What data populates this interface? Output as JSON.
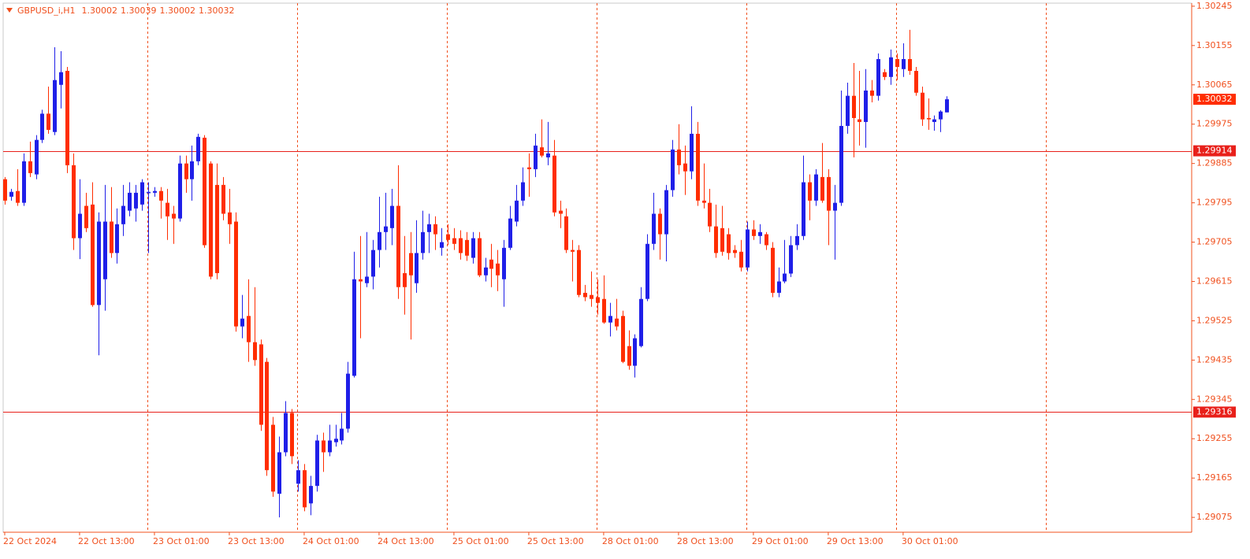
{
  "chart_data": {
    "type": "candlestick",
    "symbol": "GBPUSD_i,H1",
    "up_color": "#1f1fe8",
    "down_color": "#ff2d00",
    "axis_color": "#f0501e",
    "hline_color": "#e8201a",
    "categories": [
      "22 Oct 2024",
      null,
      null,
      null,
      null,
      null,
      null,
      null,
      null,
      null,
      null,
      null,
      "22 Oct 13:00",
      null,
      null,
      null,
      null,
      null,
      null,
      null,
      null,
      null,
      null,
      null,
      "23 Oct 01:00",
      null,
      null,
      null,
      null,
      null,
      null,
      null,
      null,
      null,
      null,
      null,
      "23 Oct 13:00",
      null,
      null,
      null,
      null,
      null,
      null,
      null,
      null,
      null,
      null,
      null,
      "24 Oct 01:00",
      null,
      null,
      null,
      null,
      null,
      null,
      null,
      null,
      null,
      null,
      null,
      "24 Oct 13:00",
      null,
      null,
      null,
      null,
      null,
      null,
      null,
      null,
      null,
      null,
      null,
      "25 Oct 01:00",
      null,
      null,
      null,
      null,
      null,
      null,
      null,
      null,
      null,
      null,
      null,
      "25 Oct 13:00",
      null,
      null,
      null,
      null,
      null,
      null,
      null,
      null,
      null,
      null,
      null,
      "28 Oct 01:00",
      null,
      null,
      null,
      null,
      null,
      null,
      null,
      null,
      null,
      null,
      null,
      "28 Oct 13:00",
      null,
      null,
      null,
      null,
      null,
      null,
      null,
      null,
      null,
      null,
      null,
      "29 Oct 01:00",
      null,
      null,
      null,
      null,
      null,
      null,
      null,
      null,
      null,
      null,
      null,
      "29 Oct 13:00",
      null,
      null,
      null,
      null,
      null,
      null,
      null,
      null,
      null,
      null,
      null,
      "30 Oct 01:00",
      null,
      null,
      null,
      null,
      null,
      null,
      null
    ],
    "open": [
      1.29849,
      1.29809,
      1.29822,
      1.29795,
      1.2989,
      1.2986,
      1.29939,
      1.29999,
      1.29957,
      1.30065,
      1.30097,
      1.29881,
      1.29714,
      1.29788,
      1.29791,
      1.29561,
      1.2962,
      1.29752,
      1.2968,
      1.29746,
      1.29777,
      1.29782,
      1.29791,
      1.29817,
      1.29818,
      1.29822,
      1.29795,
      1.2977,
      1.29759,
      1.29885,
      1.29849,
      1.2989,
      1.29944,
      1.29885,
      1.29836,
      1.29836,
      1.29773,
      1.29752,
      1.29512,
      1.29536,
      1.29476,
      1.29471,
      1.29431,
      1.29287,
      1.29129,
      1.29224,
      1.29314,
      1.29152,
      1.29183,
      1.29107,
      1.29147,
      1.29251,
      1.29224,
      1.29247,
      1.29251,
      1.29278,
      1.29399,
      1.2962,
      1.29611,
      1.29626,
      1.29687,
      1.29728,
      1.29737,
      1.29788,
      1.29634,
      1.2968,
      1.29611,
      1.2968,
      1.29728,
      1.29746,
      1.29692,
      1.29723,
      1.29714,
      1.29714,
      1.2971,
      1.29669,
      1.29714,
      1.29629,
      1.29665,
      1.29656,
      1.2962,
      1.29692,
      1.29752,
      1.298,
      1.29876,
      1.29872,
      1.29922,
      1.29899,
      1.29903,
      1.29777,
      1.29764,
      1.29687,
      1.29687,
      1.29589,
      1.29584,
      1.29579,
      1.29575,
      1.29521,
      1.2953,
      1.29536,
      1.29467,
      1.29422,
      1.29467,
      1.29575,
      1.29701,
      1.2977,
      1.29723,
      1.29824,
      1.29917,
      1.29885,
      1.29867,
      1.29953,
      1.298,
      1.29795,
      1.29741,
      1.29737,
      1.29723,
      1.29687,
      1.29683,
      1.29647,
      1.29734,
      1.29719,
      1.29723,
      1.29692,
      1.29589,
      1.29615,
      1.29633,
      1.29698,
      1.29719,
      1.29842,
      1.298,
      1.29854,
      1.29854,
      1.29777,
      1.29795,
      1.29971,
      1.3004,
      1.29986,
      1.2998,
      1.30052,
      1.3004,
      1.30094,
      1.30083,
      1.30124,
      1.30101,
      1.30124,
      1.30097,
      1.30047,
      1.29989,
      1.2998,
      1.29986,
      1.30002
    ],
    "high": [
      1.29854,
      1.29827,
      1.29872,
      1.29908,
      1.29935,
      1.2995,
      1.30008,
      1.30061,
      1.30151,
      1.30142,
      1.30106,
      1.29908,
      1.29849,
      1.29818,
      1.29842,
      1.29773,
      1.29836,
      1.29831,
      1.29782,
      1.29836,
      1.29842,
      1.29836,
      1.29849,
      1.29842,
      1.29831,
      1.29831,
      1.29827,
      1.29788,
      1.29903,
      1.29903,
      1.29926,
      1.29953,
      1.2995,
      1.2989,
      1.29885,
      1.29854,
      1.29827,
      1.29773,
      1.29584,
      1.2962,
      1.29602,
      1.29482,
      1.2944,
      1.29305,
      1.2926,
      1.29341,
      1.29323,
      1.29206,
      1.29197,
      1.2917,
      1.29264,
      1.29269,
      1.29287,
      1.29287,
      1.29314,
      1.29431,
      1.29683,
      1.29719,
      1.29728,
      1.2971,
      1.29809,
      1.29818,
      1.29827,
      1.29881,
      1.29719,
      1.29728,
      1.29755,
      1.29777,
      1.2977,
      1.29764,
      1.29737,
      1.29746,
      1.29737,
      1.29732,
      1.29728,
      1.29728,
      1.29728,
      1.29669,
      1.29701,
      1.29687,
      1.2971,
      1.29788,
      1.29836,
      1.29876,
      1.29908,
      1.29953,
      1.29986,
      1.2998,
      1.29939,
      1.298,
      1.29782,
      1.2971,
      1.29698,
      1.29607,
      1.29638,
      1.2962,
      1.29629,
      1.29566,
      1.29575,
      1.29548,
      1.29503,
      1.29494,
      1.29602,
      1.29723,
      1.29818,
      1.29782,
      1.29836,
      1.29939,
      1.29975,
      1.29926,
      1.30016,
      1.2998,
      1.29885,
      1.29827,
      1.29791,
      1.29788,
      1.29737,
      1.29698,
      1.2971,
      1.29752,
      1.29755,
      1.29746,
      1.29728,
      1.29705,
      1.29647,
      1.2971,
      1.29719,
      1.29746,
      1.29903,
      1.2986,
      1.29872,
      1.29932,
      1.29872,
      1.29836,
      1.30052,
      1.3007,
      1.30115,
      1.30097,
      1.30101,
      1.30076,
      1.30137,
      1.30101,
      1.30146,
      1.30137,
      1.3016,
      1.30191,
      1.30106,
      1.30061,
      1.30034,
      1.29995,
      1.30007,
      1.30039
    ],
    "low": [
      1.29791,
      1.298,
      1.29788,
      1.29788,
      1.29854,
      1.29849,
      1.29932,
      1.29953,
      1.2995,
      1.30011,
      1.29863,
      1.29687,
      1.29666,
      1.29728,
      1.29557,
      1.29446,
      1.29548,
      1.29669,
      1.29656,
      1.29719,
      1.29764,
      1.29752,
      1.29777,
      1.2968,
      1.29809,
      1.29759,
      1.2971,
      1.29701,
      1.29752,
      1.29818,
      1.298,
      1.29881,
      1.29692,
      1.2962,
      1.2962,
      1.29755,
      1.29701,
      1.295,
      1.29485,
      1.29431,
      1.29422,
      1.29273,
      1.2917,
      1.29122,
      1.29075,
      1.29215,
      1.29197,
      1.29134,
      1.29089,
      1.2908,
      1.29134,
      1.29179,
      1.29215,
      1.29237,
      1.29242,
      1.29269,
      1.29395,
      1.29485,
      1.29602,
      1.29597,
      1.29647,
      1.29687,
      1.29698,
      1.29575,
      1.29539,
      1.29482,
      1.29589,
      1.29665,
      1.2968,
      1.29687,
      1.29674,
      1.29698,
      1.29687,
      1.29665,
      1.29662,
      1.29656,
      1.29625,
      1.29615,
      1.29602,
      1.29593,
      1.29557,
      1.29687,
      1.29741,
      1.29788,
      1.29809,
      1.29854,
      1.29899,
      1.29881,
      1.29764,
      1.29737,
      1.2968,
      1.29615,
      1.29579,
      1.2957,
      1.29557,
      1.29539,
      1.29518,
      1.29489,
      1.29503,
      1.29428,
      1.29413,
      1.29395,
      1.29464,
      1.2957,
      1.29687,
      1.29665,
      1.29661,
      1.29809,
      1.2986,
      1.29813,
      1.29849,
      1.29788,
      1.29782,
      1.29728,
      1.29669,
      1.29674,
      1.29665,
      1.29669,
      1.29638,
      1.29638,
      1.2971,
      1.29701,
      1.29687,
      1.29579,
      1.29579,
      1.29611,
      1.29625,
      1.29687,
      1.2971,
      1.29755,
      1.29788,
      1.29795,
      1.29698,
      1.29665,
      1.29788,
      1.29953,
      1.29899,
      1.29926,
      1.29921,
      1.30025,
      1.30029,
      1.30076,
      1.30065,
      1.30076,
      1.30083,
      1.30088,
      1.3004,
      1.29971,
      1.29962,
      1.2996,
      1.29957,
      1.30002
    ],
    "close": [
      1.298,
      1.2982,
      1.29795,
      1.2989,
      1.29863,
      1.29939,
      1.29999,
      1.29962,
      1.30076,
      1.30094,
      1.29881,
      1.29714,
      1.2977,
      1.29737,
      1.29561,
      1.29752,
      1.29752,
      1.2968,
      1.29746,
      1.29788,
      1.29818,
      1.29818,
      1.29842,
      1.2982,
      1.29822,
      1.298,
      1.29764,
      1.29759,
      1.29885,
      1.29849,
      1.2989,
      1.29946,
      1.29698,
      1.29626,
      1.29634,
      1.2977,
      1.29746,
      1.29512,
      1.2953,
      1.29476,
      1.29435,
      1.29287,
      1.29183,
      1.29134,
      1.29224,
      1.29314,
      1.29215,
      1.29183,
      1.29098,
      1.29147,
      1.29251,
      1.29224,
      1.29251,
      1.29255,
      1.29278,
      1.29404,
      1.2962,
      1.29615,
      1.29626,
      1.29687,
      1.29728,
      1.29741,
      1.29788,
      1.29602,
      1.29602,
      1.29629,
      1.2968,
      1.29728,
      1.29746,
      1.29723,
      1.29705,
      1.2971,
      1.29701,
      1.2968,
      1.29674,
      1.29714,
      1.29629,
      1.29647,
      1.29644,
      1.29629,
      1.29692,
      1.29759,
      1.298,
      1.29842,
      1.29872,
      1.29926,
      1.29903,
      1.29908,
      1.29773,
      1.2977,
      1.29687,
      1.29683,
      1.29584,
      1.29579,
      1.29575,
      1.29566,
      1.29521,
      1.29536,
      1.29512,
      1.29431,
      1.29422,
      1.29485,
      1.29575,
      1.29701,
      1.2977,
      1.29723,
      1.29824,
      1.29917,
      1.29881,
      1.29867,
      1.29953,
      1.298,
      1.29795,
      1.29741,
      1.2968,
      1.29683,
      1.2968,
      1.2968,
      1.29647,
      1.29734,
      1.29719,
      1.29728,
      1.29698,
      1.29589,
      1.29615,
      1.29633,
      1.29698,
      1.29719,
      1.29842,
      1.298,
      1.2986,
      1.298,
      1.29777,
      1.29795,
      1.29971,
      1.3004,
      1.29989,
      1.2998,
      1.30052,
      1.3004,
      1.30124,
      1.30083,
      1.30128,
      1.30106,
      1.30124,
      1.30097,
      1.30047,
      1.29986,
      1.29986,
      1.29986,
      1.30004,
      1.30032
    ],
    "xlim": [
      -0.25,
      190.25
    ],
    "ylim": [
      1.29041,
      1.30252
    ],
    "yticks": [
      1.30245,
      1.30155,
      1.30065,
      1.29975,
      1.29885,
      1.29795,
      1.29705,
      1.29615,
      1.29525,
      1.29435,
      1.29345,
      1.29255,
      1.29165,
      1.29075
    ],
    "period_separators": [
      23,
      47,
      71,
      95,
      119,
      143,
      167
    ],
    "hlines": [
      1.29914,
      1.29316
    ]
  }
}
